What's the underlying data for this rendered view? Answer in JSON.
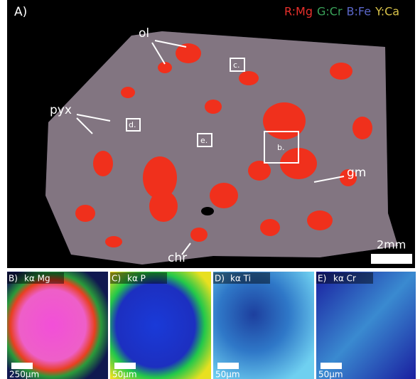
{
  "panel_a": {
    "label": "A)",
    "legend": [
      {
        "text": "R:Mg",
        "color": "#e8302c"
      },
      {
        "text": "G:Cr",
        "color": "#3aa35a"
      },
      {
        "text": "B:Fe",
        "color": "#5a66c8"
      },
      {
        "text": "Y:Ca",
        "color": "#d8c24a"
      }
    ],
    "annotations": {
      "ol": "ol",
      "pyx": "pyx",
      "gm": "gm",
      "chr": "chr"
    },
    "boxes": {
      "b": "b.",
      "c": "c.",
      "d": "d.",
      "e": "e."
    },
    "scale": "2mm"
  },
  "panels": [
    {
      "label": "B)",
      "element": "kα Mg",
      "scale": "250μm"
    },
    {
      "label": "C)",
      "element": "kα P",
      "scale": "50μm"
    },
    {
      "label": "D)",
      "element": "kα Ti",
      "scale": "50μm"
    },
    {
      "label": "E)",
      "element": "kα Cr",
      "scale": "50μm"
    }
  ]
}
